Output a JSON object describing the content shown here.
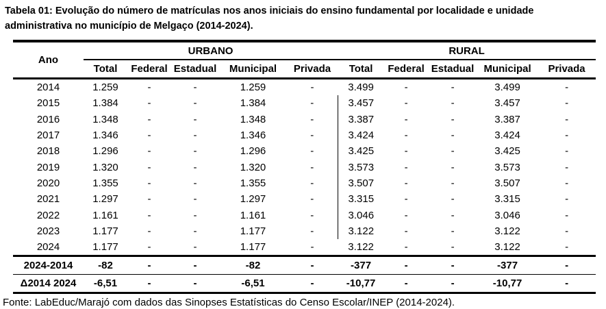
{
  "title": "Tabela 01: Evolução do número de matrículas nos anos iniciais do ensino fundamental por localidade e unidade administrativa no município de Melgaço (2014-2024).",
  "table": {
    "ano_header": "Ano",
    "groups": [
      "URBANO",
      "RURAL"
    ],
    "subheaders": [
      "Total",
      "Federal",
      "Estadual",
      "Municipal",
      "Privada",
      "Total",
      "Federal",
      "Estadual",
      "Municipal",
      "Privada"
    ],
    "rows": [
      {
        "ano": "2014",
        "cells": [
          "1.259",
          "-",
          "-",
          "1.259",
          "-",
          "3.499",
          "-",
          "-",
          "3.499",
          "-"
        ]
      },
      {
        "ano": "2015",
        "cells": [
          "1.384",
          "-",
          "-",
          "1.384",
          "-",
          "3.457",
          "-",
          "-",
          "3.457",
          "-"
        ]
      },
      {
        "ano": "2016",
        "cells": [
          "1.348",
          "-",
          "-",
          "1.348",
          "-",
          "3.387",
          "-",
          "-",
          "3.387",
          "-"
        ]
      },
      {
        "ano": "2017",
        "cells": [
          "1.346",
          "-",
          "-",
          "1.346",
          "-",
          "3.424",
          "-",
          "-",
          "3.424",
          "-"
        ]
      },
      {
        "ano": "2018",
        "cells": [
          "1.296",
          "-",
          "-",
          "1.296",
          "-",
          "3.425",
          "-",
          "-",
          "3.425",
          "-"
        ]
      },
      {
        "ano": "2019",
        "cells": [
          "1.320",
          "-",
          "-",
          "1.320",
          "-",
          "3.573",
          "-",
          "-",
          "3.573",
          "-"
        ]
      },
      {
        "ano": "2020",
        "cells": [
          "1.355",
          "-",
          "-",
          "1.355",
          "-",
          "3.507",
          "-",
          "-",
          "3.507",
          "-"
        ]
      },
      {
        "ano": "2021",
        "cells": [
          "1.297",
          "-",
          "-",
          "1.297",
          "-",
          "3.315",
          "-",
          "-",
          "3.315",
          "-"
        ]
      },
      {
        "ano": "2022",
        "cells": [
          "1.161",
          "-",
          "-",
          "1.161",
          "-",
          "3.046",
          "-",
          "-",
          "3.046",
          "-"
        ]
      },
      {
        "ano": "2023",
        "cells": [
          "1.177",
          "-",
          "-",
          "1.177",
          "-",
          "3.122",
          "-",
          "-",
          "3.122",
          "-"
        ]
      },
      {
        "ano": "2024",
        "cells": [
          "1.177",
          "-",
          "-",
          "1.177",
          "-",
          "3.122",
          "-",
          "-",
          "3.122",
          "-"
        ]
      }
    ],
    "summary_rows": [
      {
        "label": "2024-2014",
        "cells": [
          "-82",
          "-",
          "-",
          "-82",
          "-",
          "-377",
          "-",
          "-",
          "-377",
          "-"
        ]
      },
      {
        "label": "Δ2014 2024",
        "cells": [
          "-6,51",
          "-",
          "-",
          "-6,51",
          "-",
          "-10,77",
          "-",
          "-",
          "-10,77",
          "-"
        ]
      }
    ]
  },
  "footer": "Fonte: LabEduc/Marajó com dados das Sinopses Estatísticas do Censo Escolar/INEP (2014-2024).",
  "colors": {
    "text": "#000000",
    "background": "#ffffff",
    "border": "#000000"
  }
}
